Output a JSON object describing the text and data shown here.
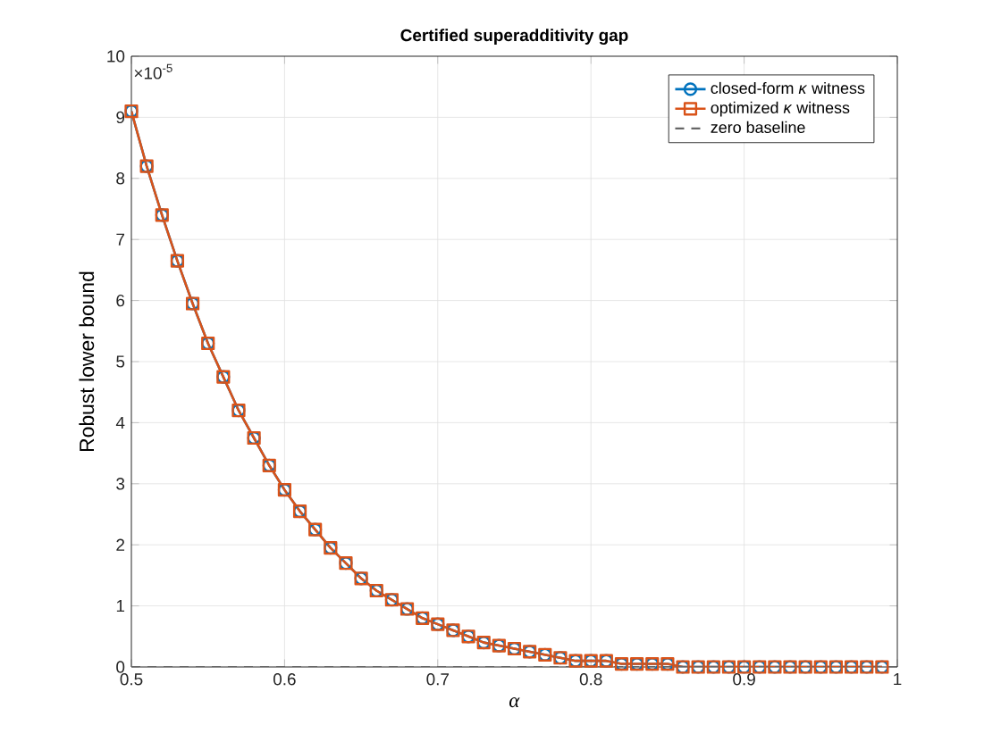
{
  "chart_data": {
    "type": "line",
    "title": "Certified superadditivity gap",
    "xlabel": "*α*",
    "ylabel": "Robust lower bound",
    "annotations": [
      "×10$^{-5}$"
    ],
    "x": [
      0.5,
      0.51,
      0.52,
      0.53,
      0.54,
      0.55,
      0.56,
      0.57,
      0.58,
      0.59,
      0.6,
      0.61,
      0.62,
      0.63,
      0.64,
      0.65,
      0.66,
      0.67,
      0.68,
      0.69,
      0.7,
      0.71,
      0.72,
      0.73,
      0.74,
      0.75,
      0.76,
      0.77,
      0.78,
      0.79,
      0.8,
      0.81,
      0.82,
      0.83,
      0.84,
      0.85,
      0.86,
      0.87,
      0.88,
      0.89,
      0.9,
      0.91,
      0.92,
      0.93,
      0.94,
      0.95,
      0.96,
      0.97,
      0.98,
      0.99
    ],
    "series": [
      {
        "name": "closed-form *κ* witness",
        "color": "#0072bd",
        "marker": "circle",
        "values": [
          9.1,
          8.2,
          7.4,
          6.65,
          5.95,
          5.3,
          4.75,
          4.2,
          3.75,
          3.3,
          2.9,
          2.55,
          2.25,
          1.95,
          1.7,
          1.45,
          1.25,
          1.1,
          0.95,
          0.8,
          0.7,
          0.6,
          0.5,
          0.4,
          0.35,
          0.3,
          0.25,
          0.2,
          0.15,
          0.1,
          0.1,
          0.1,
          0.05,
          0.05,
          0.05,
          0.05,
          0,
          0,
          0,
          0,
          0,
          0,
          0,
          0,
          0,
          0,
          0,
          0,
          0,
          0
        ]
      },
      {
        "name": "optimized *κ* witness",
        "color": "#d95319",
        "marker": "square",
        "values": [
          9.1,
          8.2,
          7.4,
          6.65,
          5.95,
          5.3,
          4.75,
          4.2,
          3.75,
          3.3,
          2.9,
          2.55,
          2.25,
          1.95,
          1.7,
          1.45,
          1.25,
          1.1,
          0.95,
          0.8,
          0.7,
          0.6,
          0.5,
          0.4,
          0.35,
          0.3,
          0.25,
          0.2,
          0.15,
          0.1,
          0.1,
          0.1,
          0.05,
          0.05,
          0.05,
          0.05,
          0,
          0,
          0,
          0,
          0,
          0,
          0,
          0,
          0,
          0,
          0,
          0,
          0,
          0
        ]
      }
    ],
    "ref_lines": [
      {
        "axis": "y",
        "value": 0,
        "label": "zero baseline",
        "color": "#666666",
        "line_style": "dashed"
      }
    ],
    "xlim": [
      0.5,
      1
    ],
    "xticks": [
      0.5,
      0.6,
      0.7,
      0.8,
      0.9,
      1
    ],
    "ylim": [
      0,
      10
    ],
    "yticks": [
      0,
      1,
      2,
      3,
      4,
      5,
      6,
      7,
      8,
      9,
      10
    ],
    "grid": true,
    "legend": "top right",
    "line_style": "solid"
  }
}
